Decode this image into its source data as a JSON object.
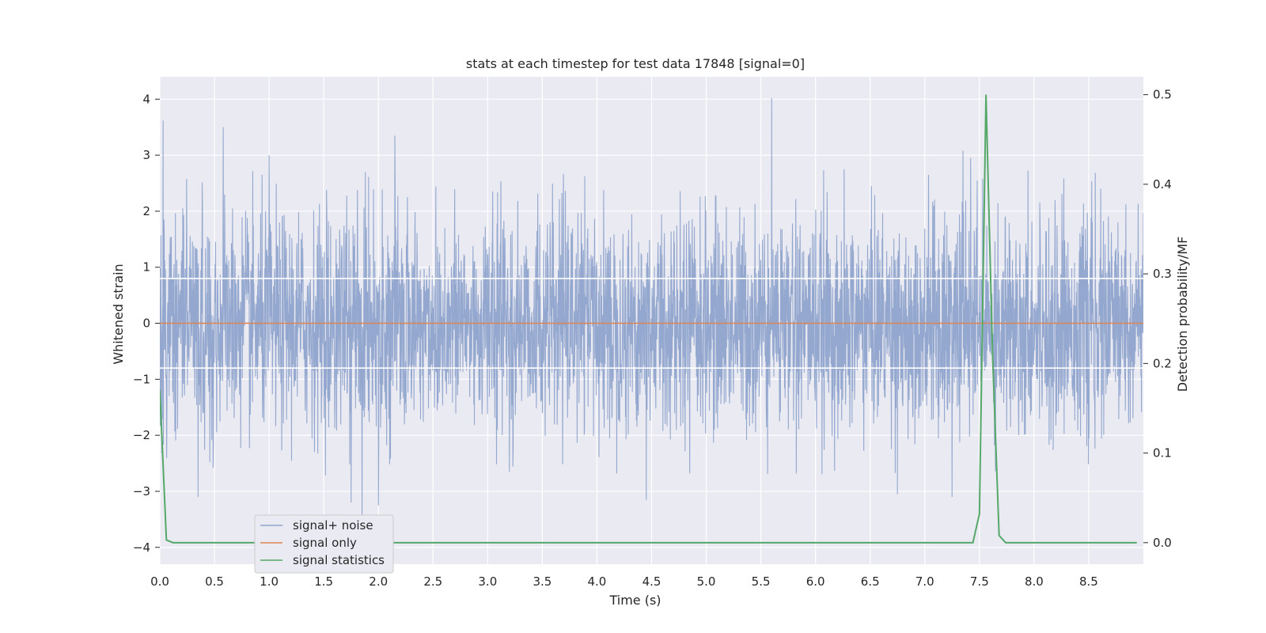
{
  "chart_data": {
    "type": "line",
    "title": "stats at each timestep for test data 17848 [signal=0]",
    "xlabel": "Time (s)",
    "ylabel": "Whitened strain",
    "y2label": "Detection probability/MF",
    "xlim": [
      0,
      9.0
    ],
    "ylim": [
      -4.3,
      4.4
    ],
    "y2lim": [
      -0.024,
      0.52
    ],
    "xticks": [
      0.0,
      0.5,
      1.0,
      1.5,
      2.0,
      2.5,
      3.0,
      3.5,
      4.0,
      4.5,
      5.0,
      5.5,
      6.0,
      6.5,
      7.0,
      7.5,
      8.0,
      8.5
    ],
    "xtick_labels": [
      "0.0",
      "0.5",
      "1.0",
      "1.5",
      "2.0",
      "2.5",
      "3.0",
      "3.5",
      "4.0",
      "4.5",
      "5.0",
      "5.5",
      "6.0",
      "6.5",
      "7.0",
      "7.5",
      "8.0",
      "8.5"
    ],
    "yticks": [
      -4,
      -3,
      -2,
      -1,
      0,
      1,
      2,
      3,
      4
    ],
    "ytick_labels": [
      "−4",
      "−3",
      "−2",
      "−1",
      "0",
      "1",
      "2",
      "3",
      "4"
    ],
    "y2ticks": [
      0.0,
      0.1,
      0.2,
      0.3,
      0.4,
      0.5
    ],
    "y2tick_labels": [
      "0.0",
      "0.1",
      "0.2",
      "0.3",
      "0.4",
      "0.5"
    ],
    "grid": true,
    "legend_position": "lower-left",
    "series": [
      {
        "name": "signal+ noise",
        "axis": "left",
        "color": "#8fa4cc",
        "kind": "noise",
        "typical_range": [
          -0.8,
          0.8
        ],
        "peaks": [
          [
            0.03,
            3.62
          ],
          [
            0.58,
            3.5
          ],
          [
            1.0,
            3.0
          ],
          [
            2.15,
            3.35
          ],
          [
            5.6,
            4.02
          ],
          [
            7.35,
            3.08
          ],
          [
            7.42,
            2.95
          ],
          [
            1.85,
            -3.5
          ],
          [
            2.0,
            -3.25
          ],
          [
            1.75,
            -3.2
          ],
          [
            7.25,
            -3.1
          ],
          [
            0.35,
            -3.1
          ],
          [
            6.75,
            -3.05
          ],
          [
            4.45,
            -3.15
          ]
        ]
      },
      {
        "name": "signal only",
        "axis": "left",
        "color": "#dd8452",
        "x": [
          0,
          9.0
        ],
        "y": [
          0,
          0
        ]
      },
      {
        "name": "signal statistics",
        "axis": "right",
        "color": "#55a868",
        "x": [
          0.0,
          0.06,
          0.12,
          7.44,
          7.5,
          7.56,
          7.62,
          7.68,
          7.74,
          8.94
        ],
        "y": [
          0.17,
          0.003,
          0.0,
          0.0,
          0.032,
          0.5,
          0.21,
          0.008,
          0.0,
          0.0
        ]
      }
    ]
  }
}
